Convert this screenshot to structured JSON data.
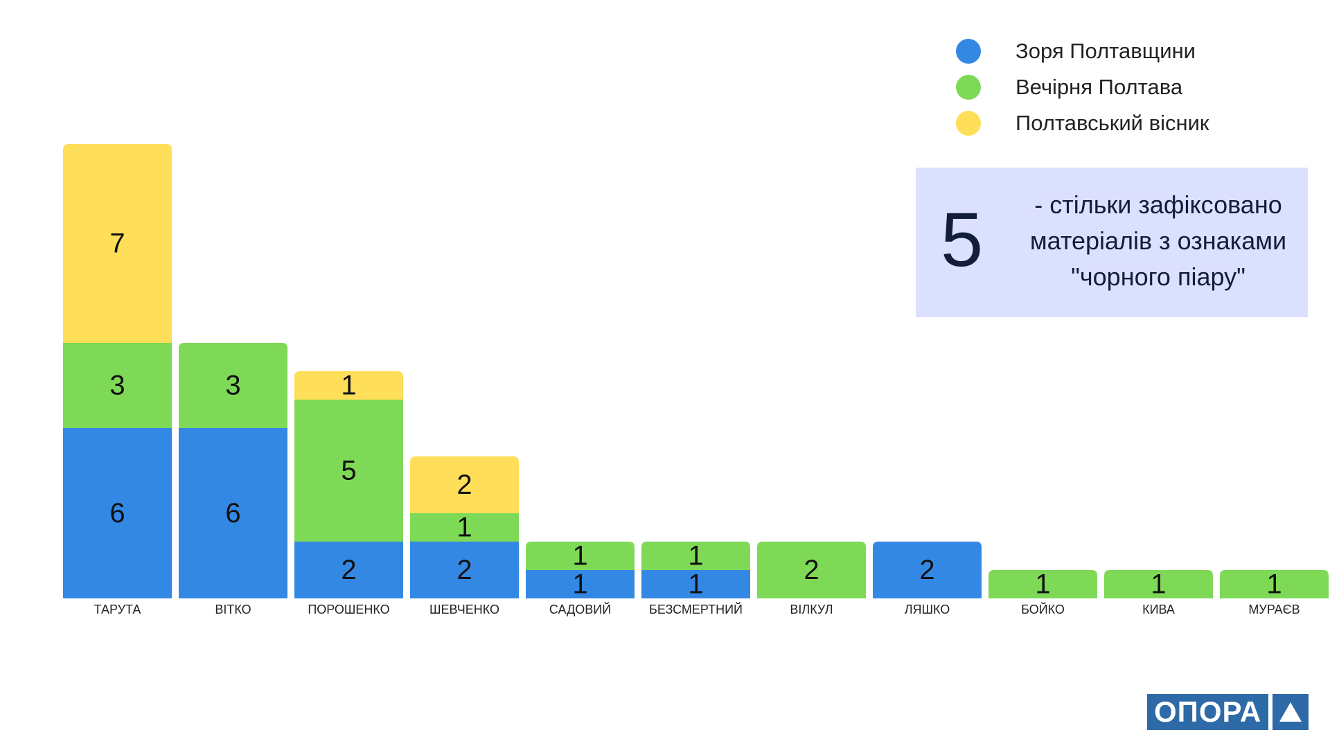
{
  "chart_data": {
    "type": "bar",
    "stacked": true,
    "categories": [
      "ТАРУТА",
      "ВІТКО",
      "ПОРОШЕНКО",
      "ШЕВЧЕНКО",
      "САДОВИЙ",
      "БЕЗСМЕРТНИЙ",
      "ВІЛКУЛ",
      "ЛЯШКО",
      "БОЙКО",
      "КИВА",
      "МУРАЄВ"
    ],
    "series": [
      {
        "name": "Зоря Полтавщини",
        "color": "#3388e4",
        "values": [
          6,
          6,
          2,
          2,
          1,
          1,
          0,
          2,
          0,
          0,
          0
        ]
      },
      {
        "name": "Вечірня Полтава",
        "color": "#7ed957",
        "values": [
          3,
          3,
          5,
          1,
          1,
          1,
          2,
          0,
          1,
          1,
          1
        ]
      },
      {
        "name": "Полтавський вісник",
        "color": "#ffde59",
        "values": [
          7,
          0,
          1,
          2,
          0,
          0,
          0,
          0,
          0,
          0,
          0
        ]
      }
    ],
    "legend_position": "top-right",
    "grid": false
  },
  "info_box": {
    "number": "5",
    "text": "- стільки зафіксовано матеріалів з ознаками \"чорного піару\""
  },
  "logo": {
    "text": "ОПОРА",
    "color": "#2e6aa8"
  }
}
